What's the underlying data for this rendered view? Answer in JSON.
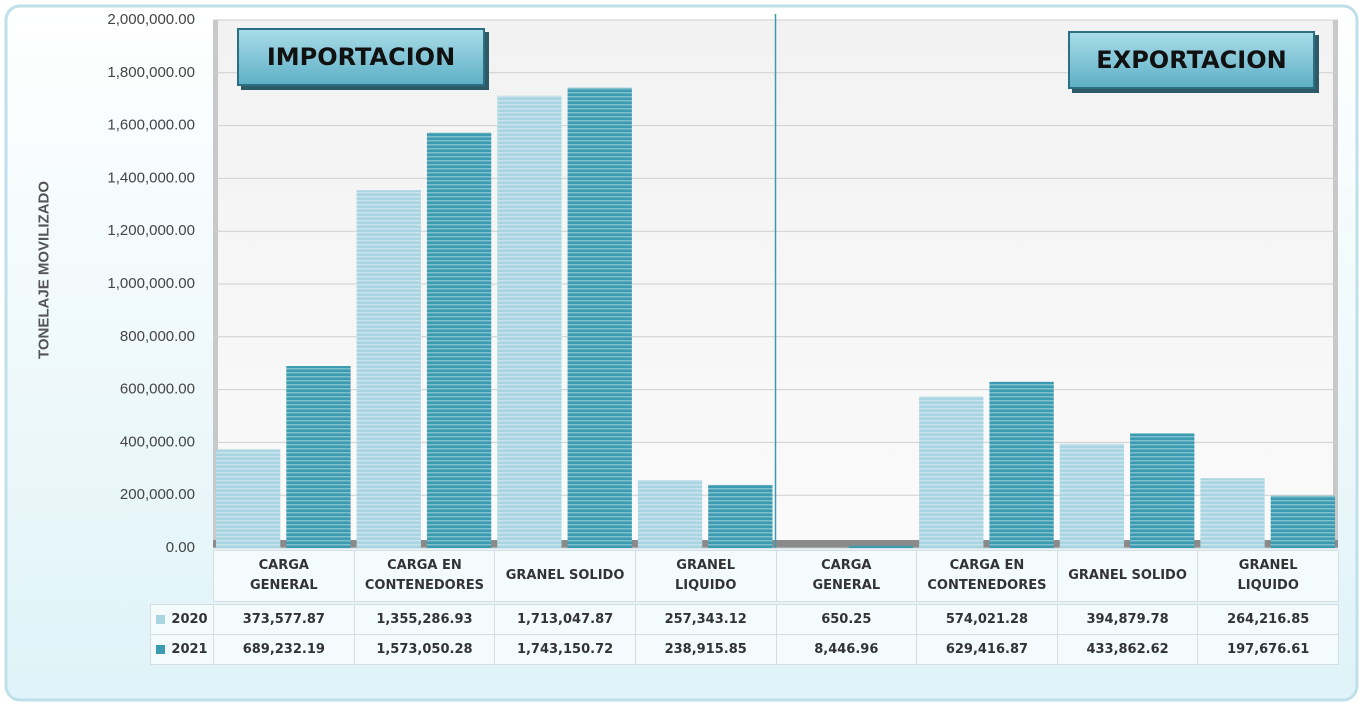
{
  "chart_data": {
    "type": "bar",
    "annotations": [
      "IMPORTACION",
      "EXPORTACION"
    ],
    "ylabel": "TONELAJE MOVILIZADO",
    "categories": [
      "CARGA\nGENERAL",
      "CARGA EN\nCONTENEDORES",
      "GRANEL SOLIDO",
      "GRANEL\nLIQUIDO",
      "CARGA\nGENERAL",
      "CARGA EN\nCONTENEDORES",
      "GRANEL SOLIDO",
      "GRANEL\nLIQUIDO"
    ],
    "series": [
      {
        "name": "2020",
        "color": "#a9d4e2",
        "values": [
          373577.87,
          1355286.93,
          1713047.87,
          257343.12,
          650.25,
          574021.28,
          394879.78,
          264216.85
        ],
        "value_labels": [
          "373,577.87",
          "1,355,286.93",
          "1,713,047.87",
          "257,343.12",
          "650.25",
          "574,021.28",
          "394,879.78",
          "264,216.85"
        ]
      },
      {
        "name": "2021",
        "color": "#3b9bb1",
        "values": [
          689232.19,
          1573050.28,
          1743150.72,
          238915.85,
          8446.96,
          629416.87,
          433862.62,
          197676.61
        ],
        "value_labels": [
          "689,232.19",
          "1,573,050.28",
          "1,743,150.72",
          "238,915.85",
          "8,446.96",
          "629,416.87",
          "433,862.62",
          "197,676.61"
        ]
      }
    ],
    "ylim": [
      0,
      2000000
    ],
    "yticks": [
      {
        "value": 0,
        "label": "0.00"
      },
      {
        "value": 200000,
        "label": "200,000.00"
      },
      {
        "value": 400000,
        "label": "400,000.00"
      },
      {
        "value": 600000,
        "label": "600,000.00"
      },
      {
        "value": 800000,
        "label": "800,000.00"
      },
      {
        "value": 1000000,
        "label": "1,000,000.00"
      },
      {
        "value": 1200000,
        "label": "1,200,000.00"
      },
      {
        "value": 1400000,
        "label": "1,400,000.00"
      },
      {
        "value": 1600000,
        "label": "1,600,000.00"
      },
      {
        "value": 1800000,
        "label": "1,800,000.00"
      },
      {
        "value": 2000000,
        "label": "2,000,000.00"
      }
    ],
    "grid": true
  }
}
